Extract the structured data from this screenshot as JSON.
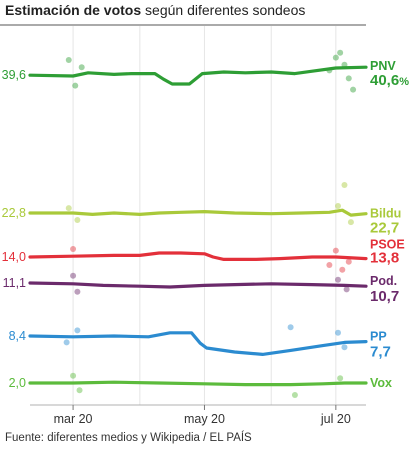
{
  "title": {
    "bold": "Estimación de votos",
    "rest": " según diferentes sondeos"
  },
  "source": "Fuente: diferentes medios y Wikipedia / EL PAÍS",
  "chart_data": {
    "type": "line",
    "title": "Estimación de votos según diferentes sondeos",
    "xlabel": "",
    "ylabel": "",
    "x_range": [
      "2020-02-10",
      "2020-07-15"
    ],
    "x_ticks": [
      {
        "label": "mar 20",
        "date": "2020-03-01"
      },
      {
        "label": "may 20",
        "date": "2020-05-01"
      },
      {
        "label": "jul 20",
        "date": "2020-07-01"
      }
    ],
    "ylim": [
      0,
      41
    ],
    "grid": true,
    "series": [
      {
        "name": "PNV",
        "color": "#2e9e35",
        "start_label": "39,6",
        "end_value_label": "40,6",
        "end_suffix": "%",
        "points": [
          [
            "2020-02-10",
            39.6
          ],
          [
            "2020-03-01",
            39.5
          ],
          [
            "2020-03-08",
            39.9
          ],
          [
            "2020-03-20",
            39.7
          ],
          [
            "2020-03-28",
            39.8
          ],
          [
            "2020-04-08",
            39.8
          ],
          [
            "2020-04-12",
            39.1
          ],
          [
            "2020-04-16",
            38.5
          ],
          [
            "2020-04-24",
            38.5
          ],
          [
            "2020-04-30",
            39.8
          ],
          [
            "2020-05-10",
            40.0
          ],
          [
            "2020-05-20",
            39.9
          ],
          [
            "2020-06-01",
            40.0
          ],
          [
            "2020-06-12",
            39.8
          ],
          [
            "2020-06-20",
            40.1
          ],
          [
            "2020-07-01",
            40.5
          ],
          [
            "2020-07-15",
            40.6
          ]
        ]
      },
      {
        "name": "Bildu",
        "color": "#a9c93a",
        "start_label": "22,8",
        "end_value_label": "22,7",
        "end_suffix": "",
        "points": [
          [
            "2020-02-10",
            22.8
          ],
          [
            "2020-03-01",
            22.8
          ],
          [
            "2020-03-10",
            22.6
          ],
          [
            "2020-03-20",
            22.8
          ],
          [
            "2020-04-01",
            22.6
          ],
          [
            "2020-04-10",
            22.8
          ],
          [
            "2020-04-20",
            22.9
          ],
          [
            "2020-05-01",
            23.0
          ],
          [
            "2020-05-15",
            22.8
          ],
          [
            "2020-06-01",
            22.7
          ],
          [
            "2020-06-15",
            22.8
          ],
          [
            "2020-06-28",
            22.9
          ],
          [
            "2020-07-04",
            23.2
          ],
          [
            "2020-07-08",
            22.5
          ],
          [
            "2020-07-15",
            22.7
          ]
        ]
      },
      {
        "name": "PSOE",
        "color": "#e3303a",
        "start_label": "14,0",
        "end_value_label": "13,8",
        "end_suffix": "",
        "points": [
          [
            "2020-02-10",
            14.0
          ],
          [
            "2020-03-01",
            14.1
          ],
          [
            "2020-03-20",
            14.2
          ],
          [
            "2020-04-01",
            14.2
          ],
          [
            "2020-04-10",
            14.5
          ],
          [
            "2020-04-20",
            14.5
          ],
          [
            "2020-05-01",
            14.4
          ],
          [
            "2020-05-05",
            14.0
          ],
          [
            "2020-05-10",
            13.7
          ],
          [
            "2020-05-25",
            13.7
          ],
          [
            "2020-06-05",
            13.8
          ],
          [
            "2020-06-20",
            14.0
          ],
          [
            "2020-07-01",
            14.0
          ],
          [
            "2020-07-15",
            13.8
          ]
        ]
      },
      {
        "name": "Pod.",
        "color": "#6b2a6b",
        "start_label": "11,1",
        "end_value_label": "10,7",
        "end_suffix": "",
        "points": [
          [
            "2020-02-10",
            11.1
          ],
          [
            "2020-03-01",
            11.0
          ],
          [
            "2020-03-15",
            10.8
          ],
          [
            "2020-04-01",
            10.7
          ],
          [
            "2020-04-15",
            10.6
          ],
          [
            "2020-05-01",
            10.8
          ],
          [
            "2020-05-15",
            10.9
          ],
          [
            "2020-06-01",
            11.0
          ],
          [
            "2020-06-20",
            10.9
          ],
          [
            "2020-07-05",
            10.8
          ],
          [
            "2020-07-15",
            10.7
          ]
        ]
      },
      {
        "name": "PP",
        "color": "#2b8bd0",
        "start_label": "8,4",
        "end_value_label": "7,7",
        "end_suffix": "",
        "points": [
          [
            "2020-02-10",
            8.4
          ],
          [
            "2020-03-01",
            8.3
          ],
          [
            "2020-03-20",
            8.4
          ],
          [
            "2020-04-05",
            8.3
          ],
          [
            "2020-04-15",
            8.8
          ],
          [
            "2020-04-25",
            8.8
          ],
          [
            "2020-04-29",
            7.5
          ],
          [
            "2020-05-02",
            6.9
          ],
          [
            "2020-05-15",
            6.4
          ],
          [
            "2020-05-28",
            6.1
          ],
          [
            "2020-06-10",
            6.6
          ],
          [
            "2020-06-25",
            7.2
          ],
          [
            "2020-07-05",
            7.6
          ],
          [
            "2020-07-15",
            7.7
          ]
        ]
      },
      {
        "name": "Vox",
        "color": "#5cbb3c",
        "start_label": "2,0",
        "end_value_label": "",
        "end_suffix": "",
        "points": [
          [
            "2020-02-10",
            2.0
          ],
          [
            "2020-03-01",
            2.0
          ],
          [
            "2020-03-20",
            2.1
          ],
          [
            "2020-04-10",
            2.0
          ],
          [
            "2020-05-01",
            1.9
          ],
          [
            "2020-05-20",
            1.8
          ],
          [
            "2020-06-10",
            1.8
          ],
          [
            "2020-06-25",
            1.9
          ],
          [
            "2020-07-05",
            2.0
          ],
          [
            "2020-07-15",
            2.0
          ]
        ]
      }
    ],
    "polls": [
      {
        "series": "PNV",
        "date": "2020-02-28",
        "value": 41.5
      },
      {
        "series": "PNV",
        "date": "2020-03-02",
        "value": 38.3
      },
      {
        "series": "PNV",
        "date": "2020-03-05",
        "value": 40.6
      },
      {
        "series": "PNV",
        "date": "2020-06-28",
        "value": 40.2
      },
      {
        "series": "PNV",
        "date": "2020-07-01",
        "value": 41.8
      },
      {
        "series": "PNV",
        "date": "2020-07-03",
        "value": 42.4
      },
      {
        "series": "PNV",
        "date": "2020-07-05",
        "value": 40.9
      },
      {
        "series": "PNV",
        "date": "2020-07-07",
        "value": 39.2
      },
      {
        "series": "PNV",
        "date": "2020-07-09",
        "value": 37.8
      },
      {
        "series": "Bildu",
        "date": "2020-02-28",
        "value": 23.5
      },
      {
        "series": "Bildu",
        "date": "2020-03-03",
        "value": 21.8
      },
      {
        "series": "Bildu",
        "date": "2020-07-02",
        "value": 23.8
      },
      {
        "series": "Bildu",
        "date": "2020-07-05",
        "value": 26.8
      },
      {
        "series": "Bildu",
        "date": "2020-07-08",
        "value": 21.5
      },
      {
        "series": "PSOE",
        "date": "2020-03-01",
        "value": 15.0
      },
      {
        "series": "PSOE",
        "date": "2020-06-28",
        "value": 13.0
      },
      {
        "series": "PSOE",
        "date": "2020-07-01",
        "value": 14.8
      },
      {
        "series": "PSOE",
        "date": "2020-07-04",
        "value": 12.4
      },
      {
        "series": "PSOE",
        "date": "2020-07-07",
        "value": 13.4
      },
      {
        "series": "Pod.",
        "date": "2020-03-01",
        "value": 12.0
      },
      {
        "series": "Pod.",
        "date": "2020-03-03",
        "value": 10.0
      },
      {
        "series": "Pod.",
        "date": "2020-07-02",
        "value": 11.5
      },
      {
        "series": "Pod.",
        "date": "2020-07-06",
        "value": 10.3
      },
      {
        "series": "PP",
        "date": "2020-02-27",
        "value": 7.6
      },
      {
        "series": "PP",
        "date": "2020-03-03",
        "value": 9.1
      },
      {
        "series": "PP",
        "date": "2020-06-10",
        "value": 9.5
      },
      {
        "series": "PP",
        "date": "2020-07-02",
        "value": 8.8
      },
      {
        "series": "PP",
        "date": "2020-07-05",
        "value": 7.0
      },
      {
        "series": "Vox",
        "date": "2020-03-01",
        "value": 2.9
      },
      {
        "series": "Vox",
        "date": "2020-03-04",
        "value": 1.1
      },
      {
        "series": "Vox",
        "date": "2020-06-12",
        "value": 0.5
      },
      {
        "series": "Vox",
        "date": "2020-07-03",
        "value": 2.6
      }
    ]
  }
}
